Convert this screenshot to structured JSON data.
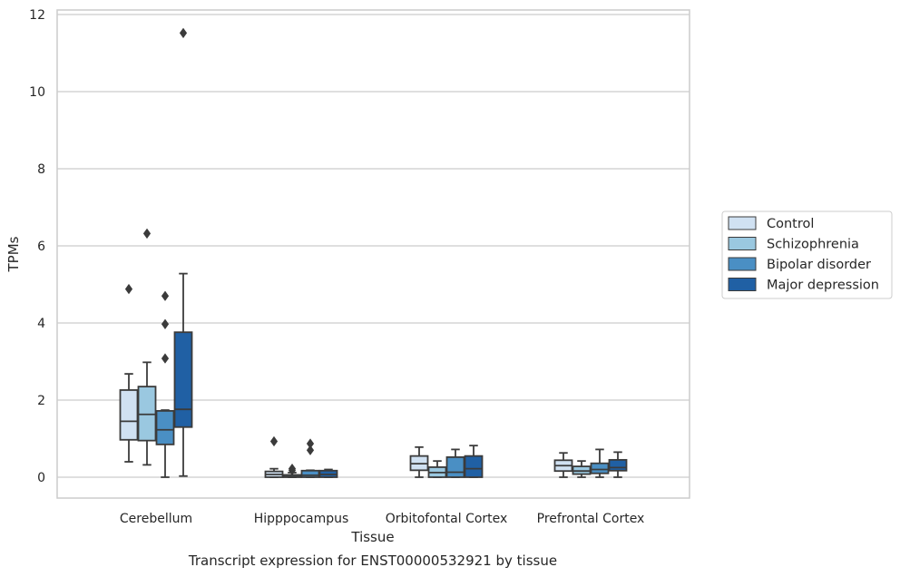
{
  "chart_data": {
    "type": "box",
    "title": "",
    "caption": "Transcript expression for ENST00000532921 by tissue",
    "xlabel": "Tissue",
    "ylabel": "TPMs",
    "ylim": [
      -0.55,
      12.15
    ],
    "yticks": [
      0,
      2,
      4,
      6,
      8,
      10,
      12
    ],
    "grid": "horizontal",
    "legend_position": "right",
    "categories": [
      "Cerebellum",
      "Hipppocampus",
      "Orbitofontal Cortex",
      "Prefrontal Cortex"
    ],
    "series": [
      {
        "name": "Control",
        "color": "#d0e1f2",
        "boxes": [
          {
            "whislo": 0.4,
            "q1": 0.97,
            "med": 1.45,
            "q3": 2.26,
            "whishi": 2.68,
            "fliers": [
              4.88
            ]
          },
          {
            "whislo": 0.0,
            "q1": 0.0,
            "med": 0.07,
            "q3": 0.15,
            "whishi": 0.22,
            "fliers": [
              0.93
            ]
          },
          {
            "whislo": 0.0,
            "q1": 0.18,
            "med": 0.35,
            "q3": 0.55,
            "whishi": 0.78,
            "fliers": []
          },
          {
            "whislo": 0.0,
            "q1": 0.16,
            "med": 0.3,
            "q3": 0.44,
            "whishi": 0.63,
            "fliers": []
          }
        ]
      },
      {
        "name": "Schizophrenia",
        "color": "#9ac8e0",
        "boxes": [
          {
            "whislo": 0.32,
            "q1": 0.95,
            "med": 1.63,
            "q3": 2.35,
            "whishi": 2.98,
            "fliers": [
              6.32
            ]
          },
          {
            "whislo": 0.0,
            "q1": 0.0,
            "med": 0.02,
            "q3": 0.06,
            "whishi": 0.12,
            "fliers": [
              0.18,
              0.22
            ]
          },
          {
            "whislo": 0.0,
            "q1": 0.0,
            "med": 0.12,
            "q3": 0.26,
            "whishi": 0.42,
            "fliers": []
          },
          {
            "whislo": 0.0,
            "q1": 0.08,
            "med": 0.16,
            "q3": 0.28,
            "whishi": 0.42,
            "fliers": []
          }
        ]
      },
      {
        "name": "Bipolar disorder",
        "color": "#4a8fc4",
        "boxes": [
          {
            "whislo": 0.0,
            "q1": 0.85,
            "med": 1.23,
            "q3": 1.72,
            "whishi": 1.74,
            "fliers": [
              3.08,
              3.97,
              4.7
            ]
          },
          {
            "whislo": 0.0,
            "q1": 0.0,
            "med": 0.05,
            "q3": 0.17,
            "whishi": 0.18,
            "fliers": [
              0.7,
              0.87
            ]
          },
          {
            "whislo": 0.0,
            "q1": 0.0,
            "med": 0.13,
            "q3": 0.52,
            "whishi": 0.72,
            "fliers": []
          },
          {
            "whislo": 0.0,
            "q1": 0.1,
            "med": 0.2,
            "q3": 0.36,
            "whishi": 0.72,
            "fliers": []
          }
        ]
      },
      {
        "name": "Major depression",
        "color": "#2060a4",
        "boxes": [
          {
            "whislo": 0.03,
            "q1": 1.3,
            "med": 1.76,
            "q3": 3.76,
            "whishi": 5.28,
            "fliers": [
              11.52
            ]
          },
          {
            "whislo": 0.0,
            "q1": 0.0,
            "med": 0.07,
            "q3": 0.17,
            "whishi": 0.2,
            "fliers": []
          },
          {
            "whislo": 0.0,
            "q1": 0.0,
            "med": 0.22,
            "q3": 0.55,
            "whishi": 0.82,
            "fliers": []
          },
          {
            "whislo": 0.0,
            "q1": 0.17,
            "med": 0.25,
            "q3": 0.45,
            "whishi": 0.65,
            "fliers": []
          }
        ]
      }
    ]
  },
  "colors": {
    "edge": "#3b3b3b",
    "grid": "#cccccc",
    "frame": "#cccccc"
  }
}
